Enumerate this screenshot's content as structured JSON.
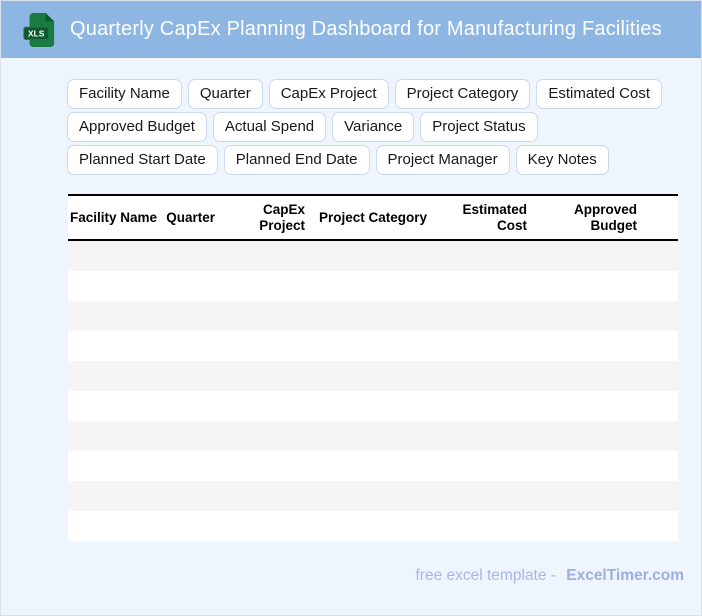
{
  "header": {
    "title": "Quarterly CapEx Planning Dashboard for Manufacturing Facilities",
    "file_badge": "XLS"
  },
  "field_chips": [
    "Facility Name",
    "Quarter",
    "CapEx Project",
    "Project Category",
    "Estimated Cost",
    "Approved Budget",
    "Actual Spend",
    "Variance",
    "Project Status",
    "Planned Start Date",
    "Planned End Date",
    "Project Manager",
    "Key Notes"
  ],
  "table": {
    "columns": [
      "Facility Name",
      "Quarter",
      "CapEx Project",
      "Project Category",
      "Estimated Cost",
      "Approved Budget"
    ],
    "row_count": 10,
    "rows_empty": true
  },
  "footer": {
    "caption": "free excel template -",
    "brand": "ExcelTimer.com"
  },
  "colors": {
    "header_bg": "#8db6e3",
    "page_bg": "#eef5fd",
    "chip_border": "#c9d9ef",
    "row_stripe": "#f5f5f6",
    "icon_green": "#1b7a42",
    "icon_green_dark": "#0d5a2e",
    "footer_text": "#a9b5e6",
    "table_border": "#000000"
  }
}
